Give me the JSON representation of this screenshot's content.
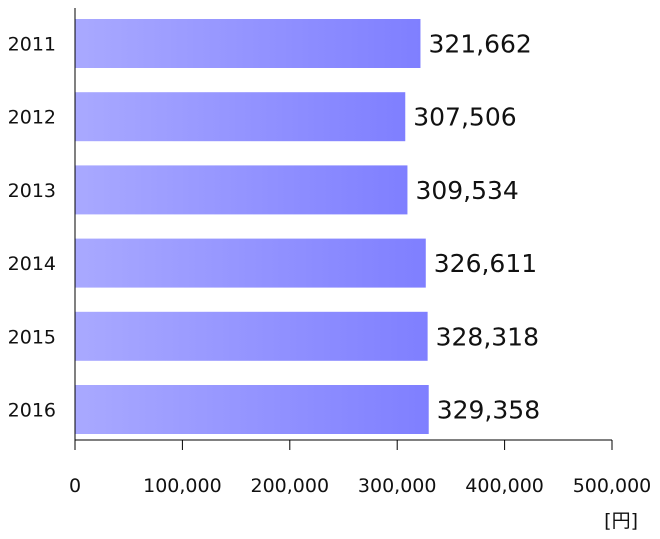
{
  "chart_data": {
    "type": "bar",
    "orientation": "horizontal",
    "categories": [
      "2011",
      "2012",
      "2013",
      "2014",
      "2015",
      "2016"
    ],
    "values": [
      321662,
      307506,
      309534,
      326611,
      328318,
      329358
    ],
    "value_labels": [
      "321,662",
      "307,506",
      "309,534",
      "326,611",
      "328,318",
      "329,358"
    ],
    "x_ticks": [
      0,
      100000,
      200000,
      300000,
      400000,
      500000
    ],
    "x_tick_labels": [
      "0",
      "100,000",
      "200,000",
      "300,000",
      "400,000",
      "500,000"
    ],
    "xlim": [
      0,
      500000
    ],
    "unit": "[円]",
    "bar_color_start": "#a9a9ff",
    "bar_color_end": "#7f7fff",
    "grid": false
  }
}
